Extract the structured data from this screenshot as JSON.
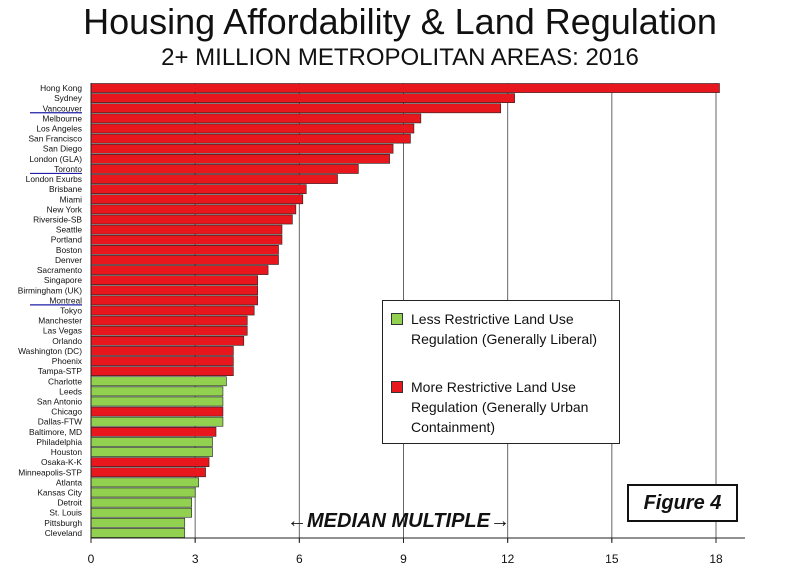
{
  "title": "Housing Affordability & Land Regulation",
  "subtitle": "2+ MILLION METROPOLITAN AREAS: 2016",
  "figure_label": "Figure 4",
  "median_label": "←MEDIAN MULTIPLE→",
  "legend": {
    "green_label": "Less Restrictive Land Use Regulation (Generally Liberal)",
    "red_label": "More Restrictive Land Use Regulation (Generally Urban Containment)"
  },
  "colors": {
    "red": "#e8171d",
    "green": "#92d050",
    "grid": "#666666",
    "underline": "#1f1fa8"
  },
  "chart_data": {
    "type": "bar",
    "orientation": "horizontal",
    "xlim": [
      0,
      18
    ],
    "xticks": [
      0,
      3,
      6,
      9,
      12,
      15,
      18
    ],
    "grid": "vertical",
    "categories": [
      "Hong Kong",
      "Sydney",
      "Vancouver",
      "Melbourne",
      "Los Angeles",
      "San Francisco",
      "San Diego",
      "London (GLA)",
      "Toronto",
      "London Exurbs",
      "Brisbane",
      "Miami",
      "New York",
      "Riverside-SB",
      "Seattle",
      "Portland",
      "Boston",
      "Denver",
      "Sacramento",
      "Singapore",
      "Birmingham (UK)",
      "Montreal",
      "Tokyo",
      "Manchester",
      "Las Vegas",
      "Orlando",
      "Washington (DC)",
      "Phoenix",
      "Tampa-STP",
      "Charlotte",
      "Leeds",
      "San Antonio",
      "Chicago",
      "Dallas-FTW",
      "Baltimore, MD",
      "Philadelphia",
      "Houston",
      "Osaka-K-K",
      "Minneapolis-STP",
      "Atlanta",
      "Kansas City",
      "Detroit",
      "St. Louis",
      "Pittsburgh",
      "Cleveland"
    ],
    "values": [
      18.1,
      12.2,
      11.8,
      9.5,
      9.3,
      9.2,
      8.7,
      8.6,
      7.7,
      7.1,
      6.2,
      6.1,
      5.9,
      5.8,
      5.5,
      5.5,
      5.4,
      5.4,
      5.1,
      4.8,
      4.8,
      4.8,
      4.7,
      4.5,
      4.5,
      4.4,
      4.1,
      4.1,
      4.1,
      3.9,
      3.8,
      3.8,
      3.8,
      3.8,
      3.6,
      3.5,
      3.5,
      3.4,
      3.3,
      3.1,
      3.0,
      2.9,
      2.9,
      2.7,
      2.7
    ],
    "regulation": [
      "more",
      "more",
      "more",
      "more",
      "more",
      "more",
      "more",
      "more",
      "more",
      "more",
      "more",
      "more",
      "more",
      "more",
      "more",
      "more",
      "more",
      "more",
      "more",
      "more",
      "more",
      "more",
      "more",
      "more",
      "more",
      "more",
      "more",
      "more",
      "more",
      "less",
      "less",
      "less",
      "more",
      "less",
      "more",
      "less",
      "less",
      "more",
      "more",
      "less",
      "less",
      "less",
      "less",
      "less",
      "less"
    ]
  }
}
